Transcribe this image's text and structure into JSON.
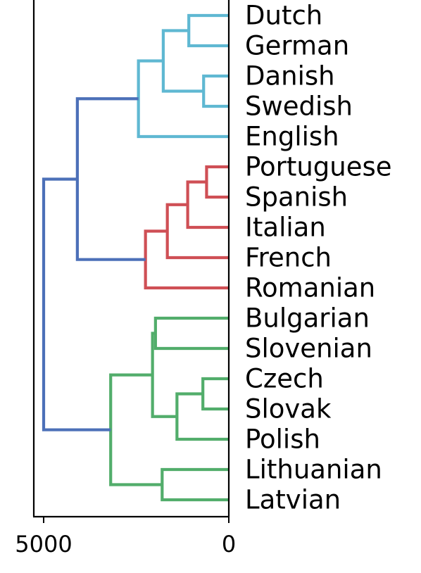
{
  "chart_data": {
    "type": "dendrogram",
    "orientation": "right",
    "leaves": [
      "Dutch",
      "German",
      "Danish",
      "Swedish",
      "English",
      "Portuguese",
      "Spanish",
      "Italian",
      "French",
      "Romanian",
      "Bulgarian",
      "Slovenian",
      "Czech",
      "Slovak",
      "Polish",
      "Lithuanian",
      "Latvian"
    ],
    "xlim": [
      5000,
      0
    ],
    "x_ticks": [
      {
        "value": 5000,
        "label": "5000"
      },
      {
        "value": 0,
        "label": "0"
      }
    ],
    "colors": {
      "germanic": "#5fb8d2",
      "romance": "#cf4f55",
      "slavic": "#52ad6b",
      "above_threshold": "#4c70b8"
    },
    "merges": [
      {
        "a": "Dutch",
        "b": "German",
        "height": 1080,
        "color": "germanic"
      },
      {
        "a": "Danish",
        "b": "Swedish",
        "height": 680,
        "color": "germanic"
      },
      {
        "a": 0,
        "b": 1,
        "height": 1770,
        "color": "germanic"
      },
      {
        "a": 2,
        "b": "English",
        "height": 2440,
        "color": "germanic"
      },
      {
        "a": "Portuguese",
        "b": "Spanish",
        "height": 600,
        "color": "romance"
      },
      {
        "a": 4,
        "b": "Italian",
        "height": 1110,
        "color": "romance"
      },
      {
        "a": 5,
        "b": "French",
        "height": 1660,
        "color": "romance"
      },
      {
        "a": 6,
        "b": "Romanian",
        "height": 2250,
        "color": "romance"
      },
      {
        "a": "Bulgarian",
        "b": "Slovenian",
        "height": 1980,
        "color": "slavic"
      },
      {
        "a": "Czech",
        "b": "Slovak",
        "height": 700,
        "color": "slavic"
      },
      {
        "a": 9,
        "b": "Polish",
        "height": 1400,
        "color": "slavic"
      },
      {
        "a": 8,
        "b": 10,
        "height": 2060,
        "color": "slavic"
      },
      {
        "a": "Lithuanian",
        "b": "Latvian",
        "height": 1800,
        "color": "slavic"
      },
      {
        "a": 11,
        "b": 12,
        "height": 3190,
        "color": "slavic"
      },
      {
        "a": 3,
        "b": 7,
        "height": 4090,
        "color": "above_threshold"
      },
      {
        "a": 14,
        "b": 13,
        "height": 5000,
        "color": "above_threshold"
      }
    ]
  }
}
